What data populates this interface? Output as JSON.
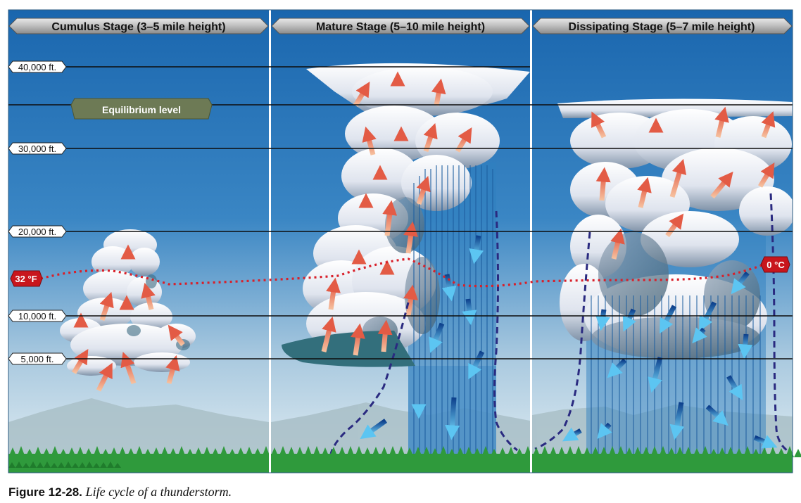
{
  "stages": [
    {
      "title": "Cumulus Stage (3–5 mile height)"
    },
    {
      "title": "Mature Stage (5–10 mile height)"
    },
    {
      "title": "Dissipating Stage (5–7 mile height)"
    }
  ],
  "altitudes": [
    "40,000 ft.",
    "30,000 ft.",
    "20,000 ft.",
    "10,000 ft.",
    "5,000 ft."
  ],
  "equilibrium_label": "Equilibrium level",
  "freezing_left": "32 °F",
  "freezing_right": "0 °C",
  "caption": {
    "label": "Figure 12-28.",
    "text": "Life cycle of a thunderstorm."
  },
  "colors": {
    "sky_top": "#1f6fb5",
    "sky_bottom": "#d6e6ee",
    "updraft": "#e8705a",
    "downdraft": "#2a8fd6",
    "freezing_line": "#d8202a",
    "equilibrium": "#6d7a55",
    "trees": "#2f9a3c"
  }
}
